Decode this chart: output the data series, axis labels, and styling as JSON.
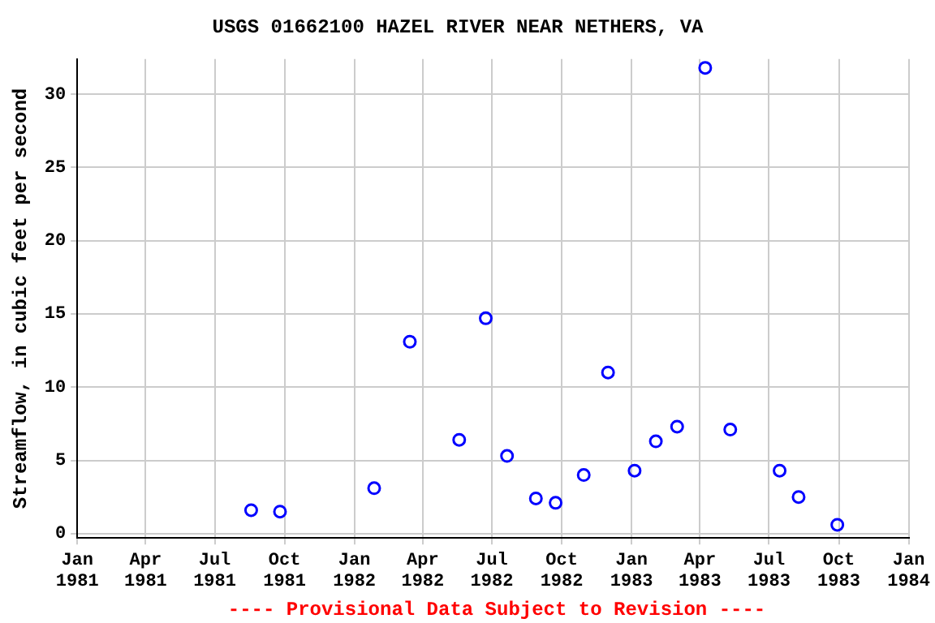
{
  "chart_data": {
    "type": "scatter",
    "title": "USGS 01662100 HAZEL RIVER NEAR NETHERS, VA",
    "ylabel": "Streamflow, in cubic feet per second",
    "x": [
      "1981-08-18",
      "1981-09-25",
      "1982-01-27",
      "1982-03-15",
      "1982-05-19",
      "1982-06-23",
      "1982-07-21",
      "1982-08-28",
      "1982-09-23",
      "1982-10-30",
      "1982-12-01",
      "1983-01-05",
      "1983-02-02",
      "1983-03-02",
      "1983-04-08",
      "1983-05-11",
      "1983-07-15",
      "1983-08-09",
      "1983-09-29"
    ],
    "series": [
      {
        "color": "#0000ff",
        "values": [
          1.6,
          1.5,
          3.1,
          13.1,
          6.4,
          14.7,
          5.3,
          2.4,
          2.1,
          4.0,
          11.0,
          4.3,
          6.3,
          7.3,
          31.8,
          7.1,
          4.3,
          2.5,
          0.6
        ]
      }
    ],
    "xlim": [
      "1981-01-01",
      "1984-01-01"
    ],
    "xticks": [
      {
        "value": "1981-01-01",
        "label": "Jan 1981"
      },
      {
        "value": "1981-04-01",
        "label": "Apr 1981"
      },
      {
        "value": "1981-07-01",
        "label": "Jul 1981"
      },
      {
        "value": "1981-10-01",
        "label": "Oct 1981"
      },
      {
        "value": "1982-01-01",
        "label": "Jan 1982"
      },
      {
        "value": "1982-04-01",
        "label": "Apr 1982"
      },
      {
        "value": "1982-07-01",
        "label": "Jul 1982"
      },
      {
        "value": "1982-10-01",
        "label": "Oct 1982"
      },
      {
        "value": "1983-01-01",
        "label": "Jan 1983"
      },
      {
        "value": "1983-04-01",
        "label": "Apr 1983"
      },
      {
        "value": "1983-07-01",
        "label": "Jul 1983"
      },
      {
        "value": "1983-10-01",
        "label": "Oct 1983"
      },
      {
        "value": "1984-01-01",
        "label": "Jan 1984"
      }
    ],
    "ylim": [
      -0.3,
      32.4
    ],
    "yticks": [
      0,
      5,
      10,
      15,
      20,
      25,
      30
    ],
    "grid": true,
    "marker": "circle",
    "annotations": [
      "---- Provisional Data Subject to Revision ----"
    ]
  }
}
